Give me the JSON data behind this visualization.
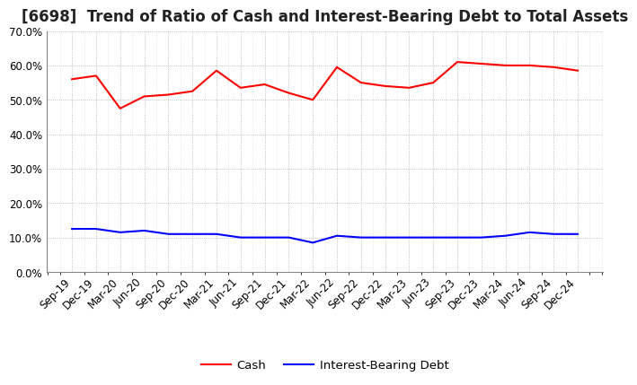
{
  "title": "[6698]  Trend of Ratio of Cash and Interest-Bearing Debt to Total Assets",
  "x_labels": [
    "Sep-19",
    "Dec-19",
    "Mar-20",
    "Jun-20",
    "Sep-20",
    "Dec-20",
    "Mar-21",
    "Jun-21",
    "Sep-21",
    "Dec-21",
    "Mar-22",
    "Jun-22",
    "Sep-22",
    "Dec-22",
    "Mar-23",
    "Jun-23",
    "Sep-23",
    "Dec-23",
    "Mar-24",
    "Jun-24",
    "Sep-24",
    "Dec-24"
  ],
  "cash": [
    56.0,
    57.0,
    47.5,
    51.0,
    51.5,
    52.5,
    58.5,
    53.5,
    54.5,
    52.0,
    50.0,
    59.5,
    55.0,
    54.0,
    53.5,
    55.0,
    61.0,
    60.5,
    60.0,
    60.0,
    59.5,
    58.5
  ],
  "debt": [
    12.5,
    12.5,
    11.5,
    12.0,
    11.0,
    11.0,
    11.0,
    10.0,
    10.0,
    10.0,
    8.5,
    10.5,
    10.0,
    10.0,
    10.0,
    10.0,
    10.0,
    10.0,
    10.5,
    11.5,
    11.0,
    11.0
  ],
  "cash_color": "#ff0000",
  "debt_color": "#0000ff",
  "background_color": "#ffffff",
  "plot_background": "#ffffff",
  "grid_color": "#999999",
  "ylim": [
    0,
    70
  ],
  "yticks": [
    0,
    10,
    20,
    30,
    40,
    50,
    60,
    70
  ],
  "legend_cash": "Cash",
  "legend_debt": "Interest-Bearing Debt",
  "title_fontsize": 12,
  "axis_fontsize": 8.5,
  "legend_fontsize": 9.5
}
